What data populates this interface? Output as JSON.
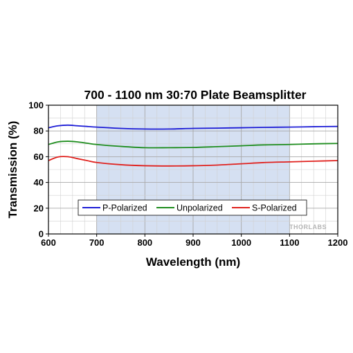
{
  "chart_data": {
    "type": "line",
    "title": "700 - 1100 nm 30:70 Plate Beamsplitter",
    "xlabel": "Wavelength (nm)",
    "ylabel": "Transmission (%)",
    "xlim": [
      600,
      1200
    ],
    "ylim": [
      0,
      100
    ],
    "x_ticks": [
      600,
      700,
      800,
      900,
      1000,
      1100,
      1200
    ],
    "y_ticks": [
      0,
      20,
      40,
      60,
      80,
      100
    ],
    "grid": true,
    "highlight_band": [
      700,
      1100
    ],
    "legend_position": "bottom-center",
    "x": [
      600,
      620,
      640,
      660,
      680,
      700,
      750,
      800,
      850,
      900,
      950,
      1000,
      1050,
      1100,
      1150,
      1200
    ],
    "series": [
      {
        "name": "P-Polarized",
        "color": "#1a1ad6",
        "values": [
          82.5,
          84.0,
          84.5,
          84.0,
          83.5,
          83.0,
          82.0,
          81.5,
          81.5,
          82.0,
          82.2,
          82.5,
          82.8,
          83.0,
          83.3,
          83.5
        ]
      },
      {
        "name": "Unpolarized",
        "color": "#1c8c1c",
        "values": [
          69.5,
          71.5,
          72.0,
          71.5,
          70.5,
          69.5,
          68.0,
          67.0,
          67.0,
          67.2,
          67.8,
          68.5,
          69.2,
          69.5,
          70.0,
          70.3
        ]
      },
      {
        "name": "S-Polarized",
        "color": "#e0201c",
        "values": [
          57.0,
          59.8,
          60.0,
          58.5,
          57.0,
          55.5,
          53.8,
          53.0,
          52.8,
          53.0,
          53.5,
          54.5,
          55.5,
          56.0,
          56.5,
          57.0
        ]
      }
    ]
  },
  "watermark": "THORLABS"
}
